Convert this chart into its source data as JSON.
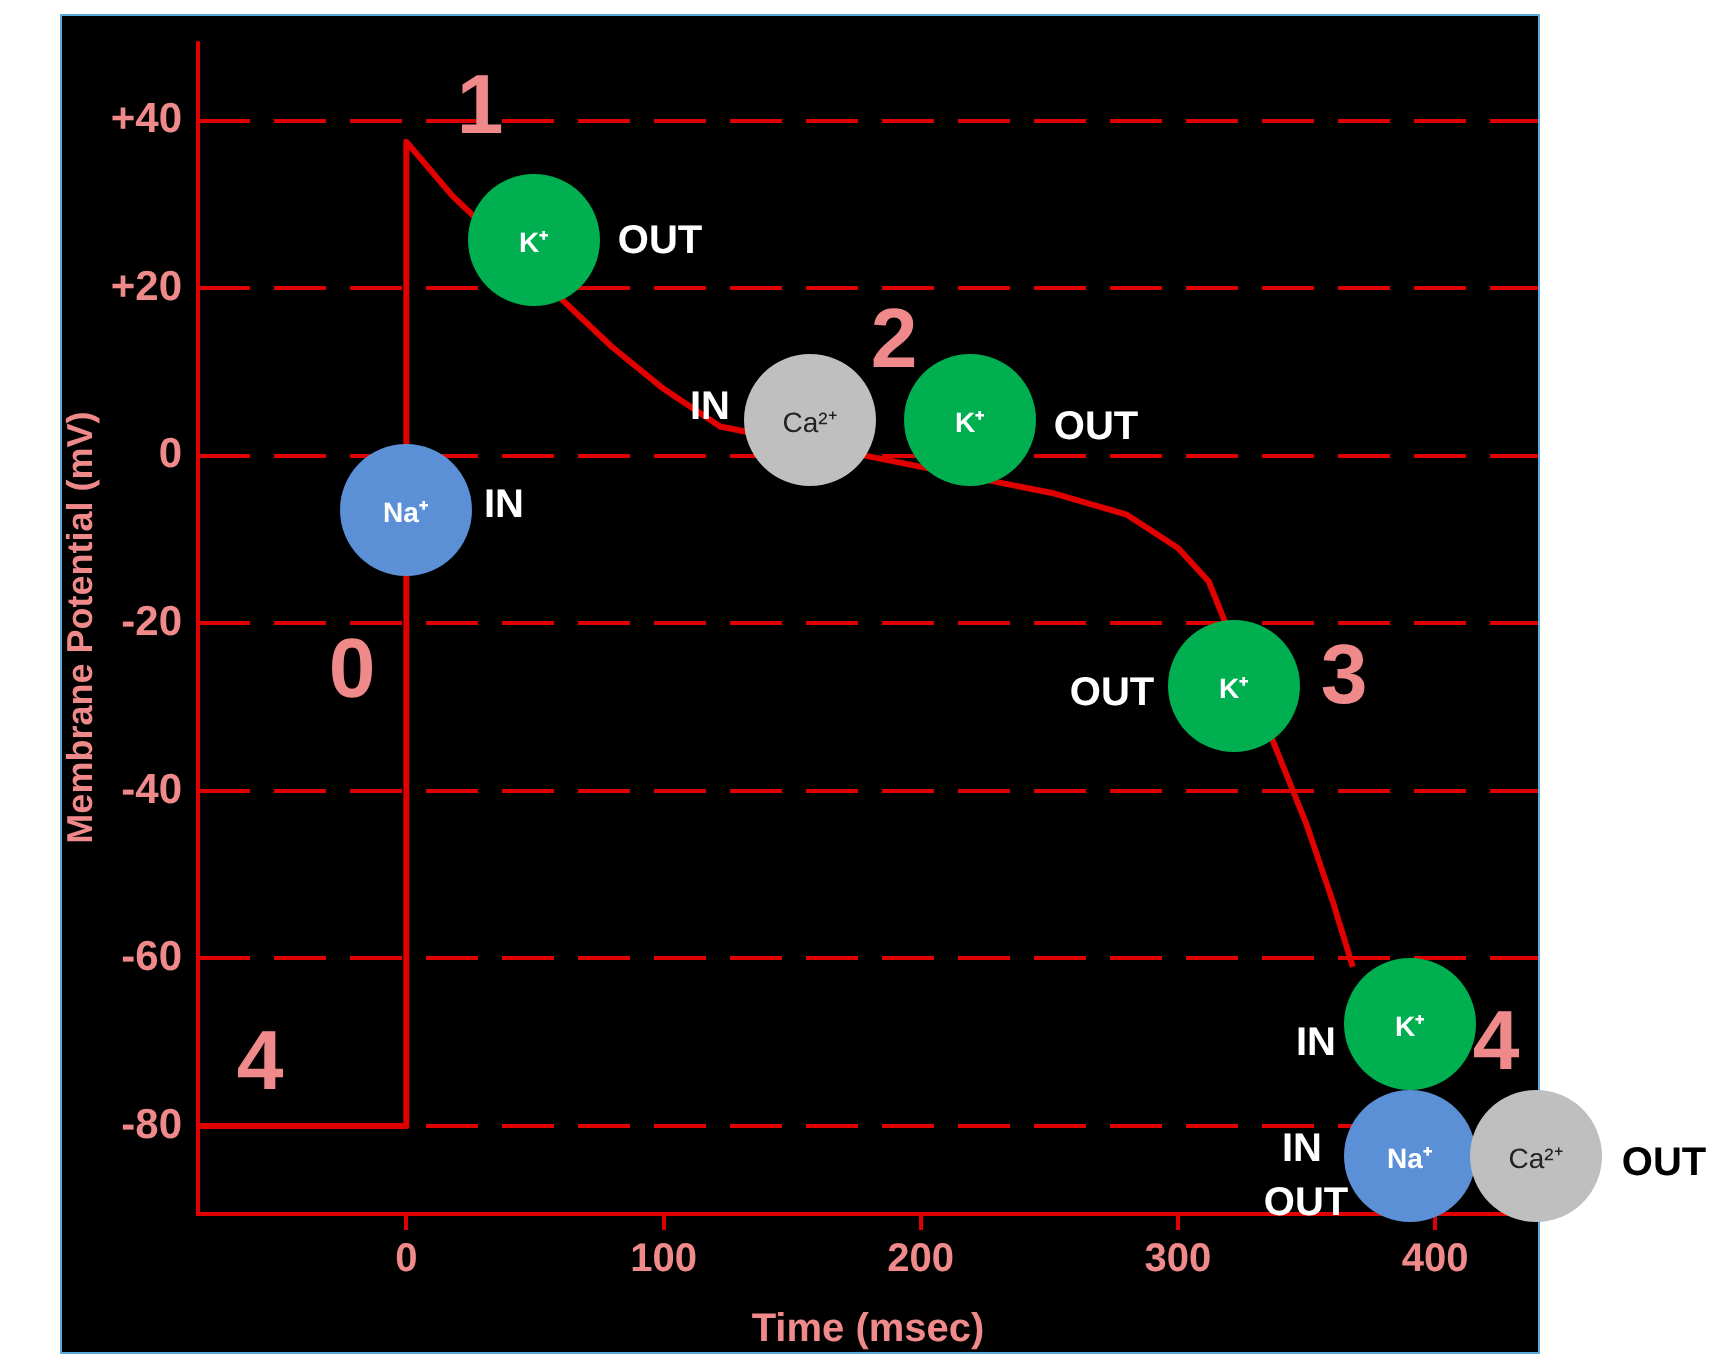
{
  "chart_data": {
    "type": "line",
    "xlabel": "Time (msec)",
    "ylabel": "Membrane Potential (mV)",
    "x": [
      -81,
      0,
      0,
      18,
      80,
      100,
      122,
      252,
      280,
      300,
      312,
      350,
      360,
      368
    ],
    "values": [
      -80,
      -80,
      37.5,
      31,
      13,
      8,
      3.5,
      -4.5,
      -7,
      -11,
      -15,
      -44,
      -53,
      -61
    ],
    "color": "#e00000",
    "marker": "none",
    "legend": false,
    "grid": "y",
    "xlim": [
      -81,
      440
    ],
    "xticks": [
      0,
      100,
      200,
      300,
      400
    ],
    "ylim": [
      -90.5,
      49.5
    ],
    "yticks": [
      {
        "value": 40,
        "label": "+40"
      },
      {
        "value": 20,
        "label": "+20"
      },
      0,
      -20,
      -40,
      -60,
      -80
    ],
    "annotations": [
      "1",
      "2",
      "3",
      "0",
      "4",
      "4",
      "K⁺",
      "Na⁺",
      "Ca²⁺",
      "K⁺",
      "K⁺",
      "K⁺",
      "Na⁺",
      "Ca²⁺",
      "OUT",
      "IN",
      "IN",
      "OUT",
      "OUT",
      "IN",
      "IN",
      "OUT",
      "OUT"
    ]
  }
}
